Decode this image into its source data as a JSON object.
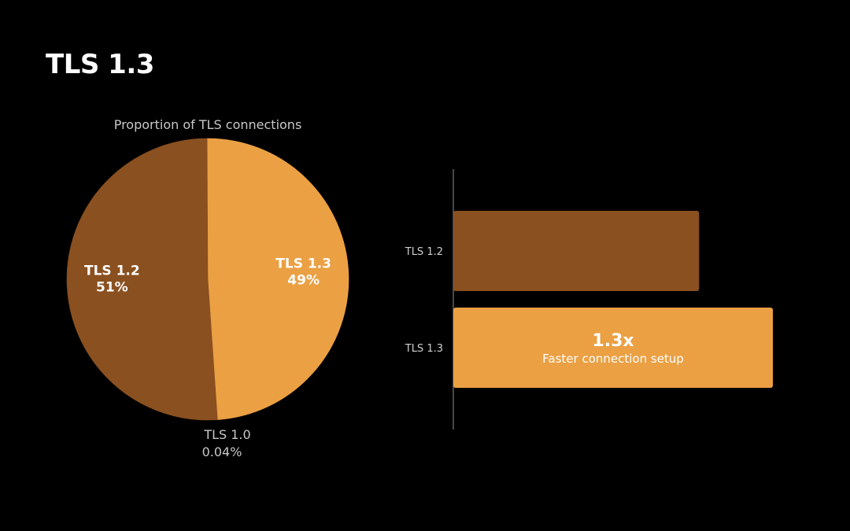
{
  "slide": {
    "title": "TLS 1.3"
  },
  "colors": {
    "background": "#000000",
    "tls12": "#8a5020",
    "tls13": "#eba043",
    "tls10_label": "#c8c8c8"
  },
  "chart_data": [
    {
      "type": "pie",
      "title": "Proportion of TLS connections",
      "slices": [
        {
          "name": "TLS 1.3",
          "value": 49,
          "value_label": "49%",
          "color": "#eba043"
        },
        {
          "name": "TLS 1.0",
          "value": 0.04,
          "value_label": "0.04%",
          "color": "#8a5020"
        },
        {
          "name": "TLS 1.2",
          "value": 51,
          "value_label": "51%",
          "color": "#8a5020"
        }
      ]
    },
    {
      "type": "bar",
      "orientation": "horizontal",
      "categories": [
        "TLS 1.2",
        "TLS 1.3"
      ],
      "values": [
        1.0,
        1.3
      ],
      "colors": [
        "#8a5020",
        "#eba043"
      ],
      "annotation": {
        "category": "TLS 1.3",
        "headline": "1.3x",
        "caption": "Faster connection setup"
      }
    }
  ]
}
